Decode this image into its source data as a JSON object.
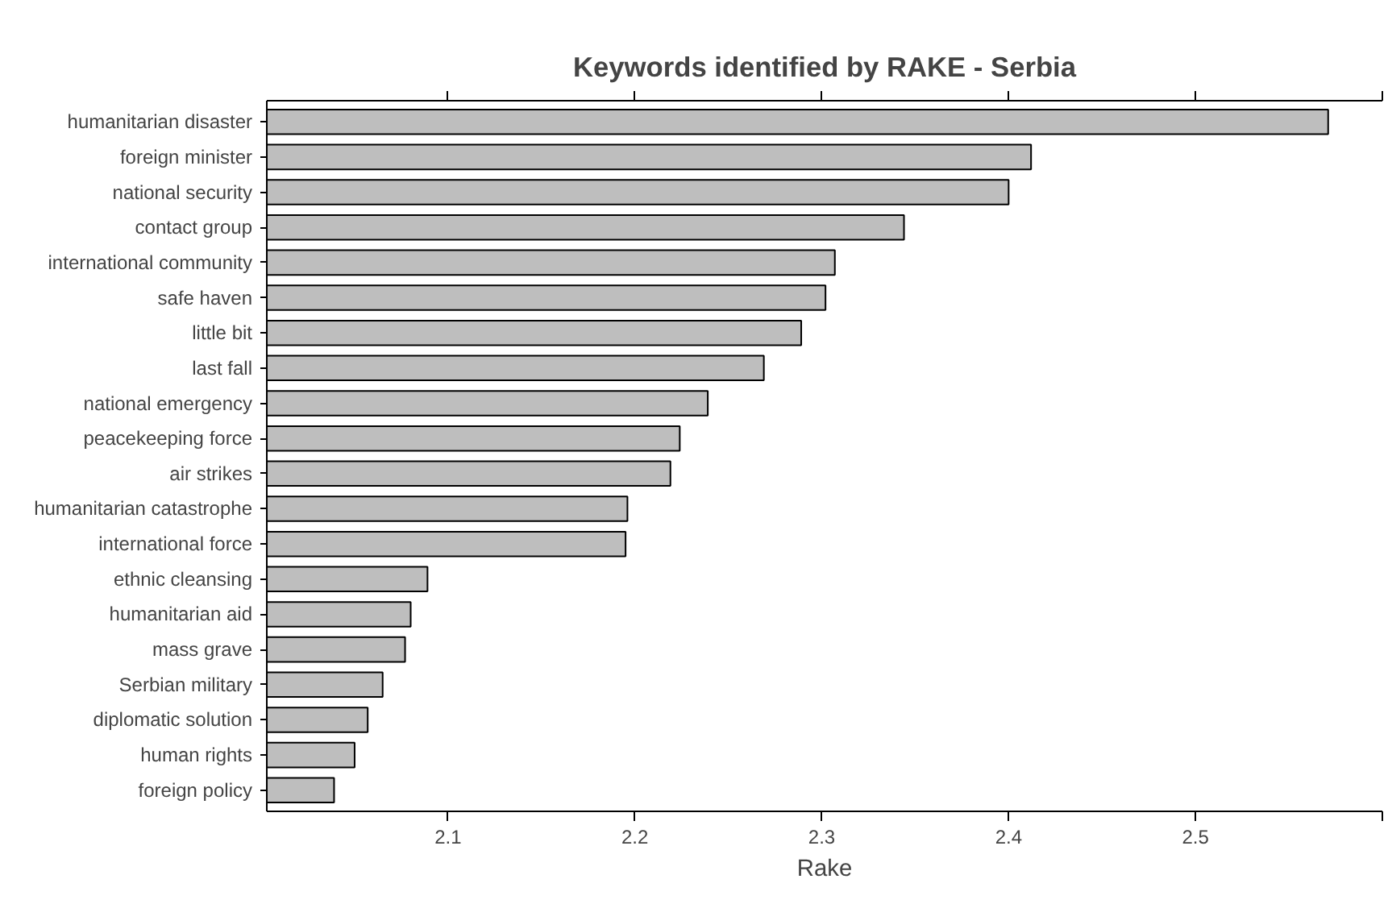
{
  "chart_data": {
    "type": "bar",
    "orientation": "horizontal",
    "title": "Keywords identified by RAKE - Serbia",
    "xlabel": "Rake",
    "categories": [
      "humanitarian disaster",
      "foreign minister",
      "national security",
      "contact group",
      "international community",
      "safe haven",
      "little bit",
      "last fall",
      "national emergency",
      "peacekeeping force",
      "air strikes",
      "humanitarian catastrophe",
      "international force",
      "ethnic cleansing",
      "humanitarian aid",
      "mass grave",
      "Serbian military",
      "diplomatic solution",
      "human rights",
      "foreign policy"
    ],
    "values": [
      2.571,
      2.412,
      2.4,
      2.344,
      2.307,
      2.302,
      2.289,
      2.269,
      2.239,
      2.224,
      2.219,
      2.196,
      2.195,
      2.089,
      2.08,
      2.077,
      2.065,
      2.057,
      2.05,
      2.039
    ],
    "color": "#bebebe",
    "xlim": [
      2.003,
      2.6
    ],
    "xticks": [
      2.1,
      2.2,
      2.3,
      2.4,
      2.5,
      {
        "value": 2.6,
        "label": null
      }
    ],
    "grid": false
  }
}
